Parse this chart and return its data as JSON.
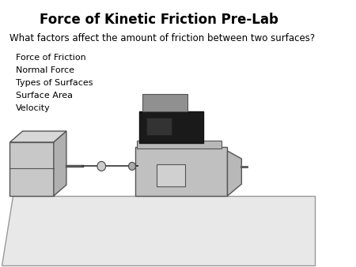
{
  "title": "Force of Kinetic Friction Pre-Lab",
  "question": "What factors affect the amount of friction between two surfaces?",
  "list_items": [
    "Force of Friction",
    "Normal Force",
    "Types of Surfaces",
    "Surface Area",
    "Velocity"
  ],
  "bg_color": "#ffffff",
  "title_fontsize": 12,
  "question_fontsize": 8.5,
  "list_fontsize": 8,
  "border_color": "#888888",
  "ramp_color": "#e8e8e8",
  "ramp_border": "#999999",
  "light_gray": "#cccccc",
  "mid_gray": "#aaaaaa",
  "dark_gray": "#555555",
  "darker_gray": "#404040",
  "very_dark": "#222222"
}
